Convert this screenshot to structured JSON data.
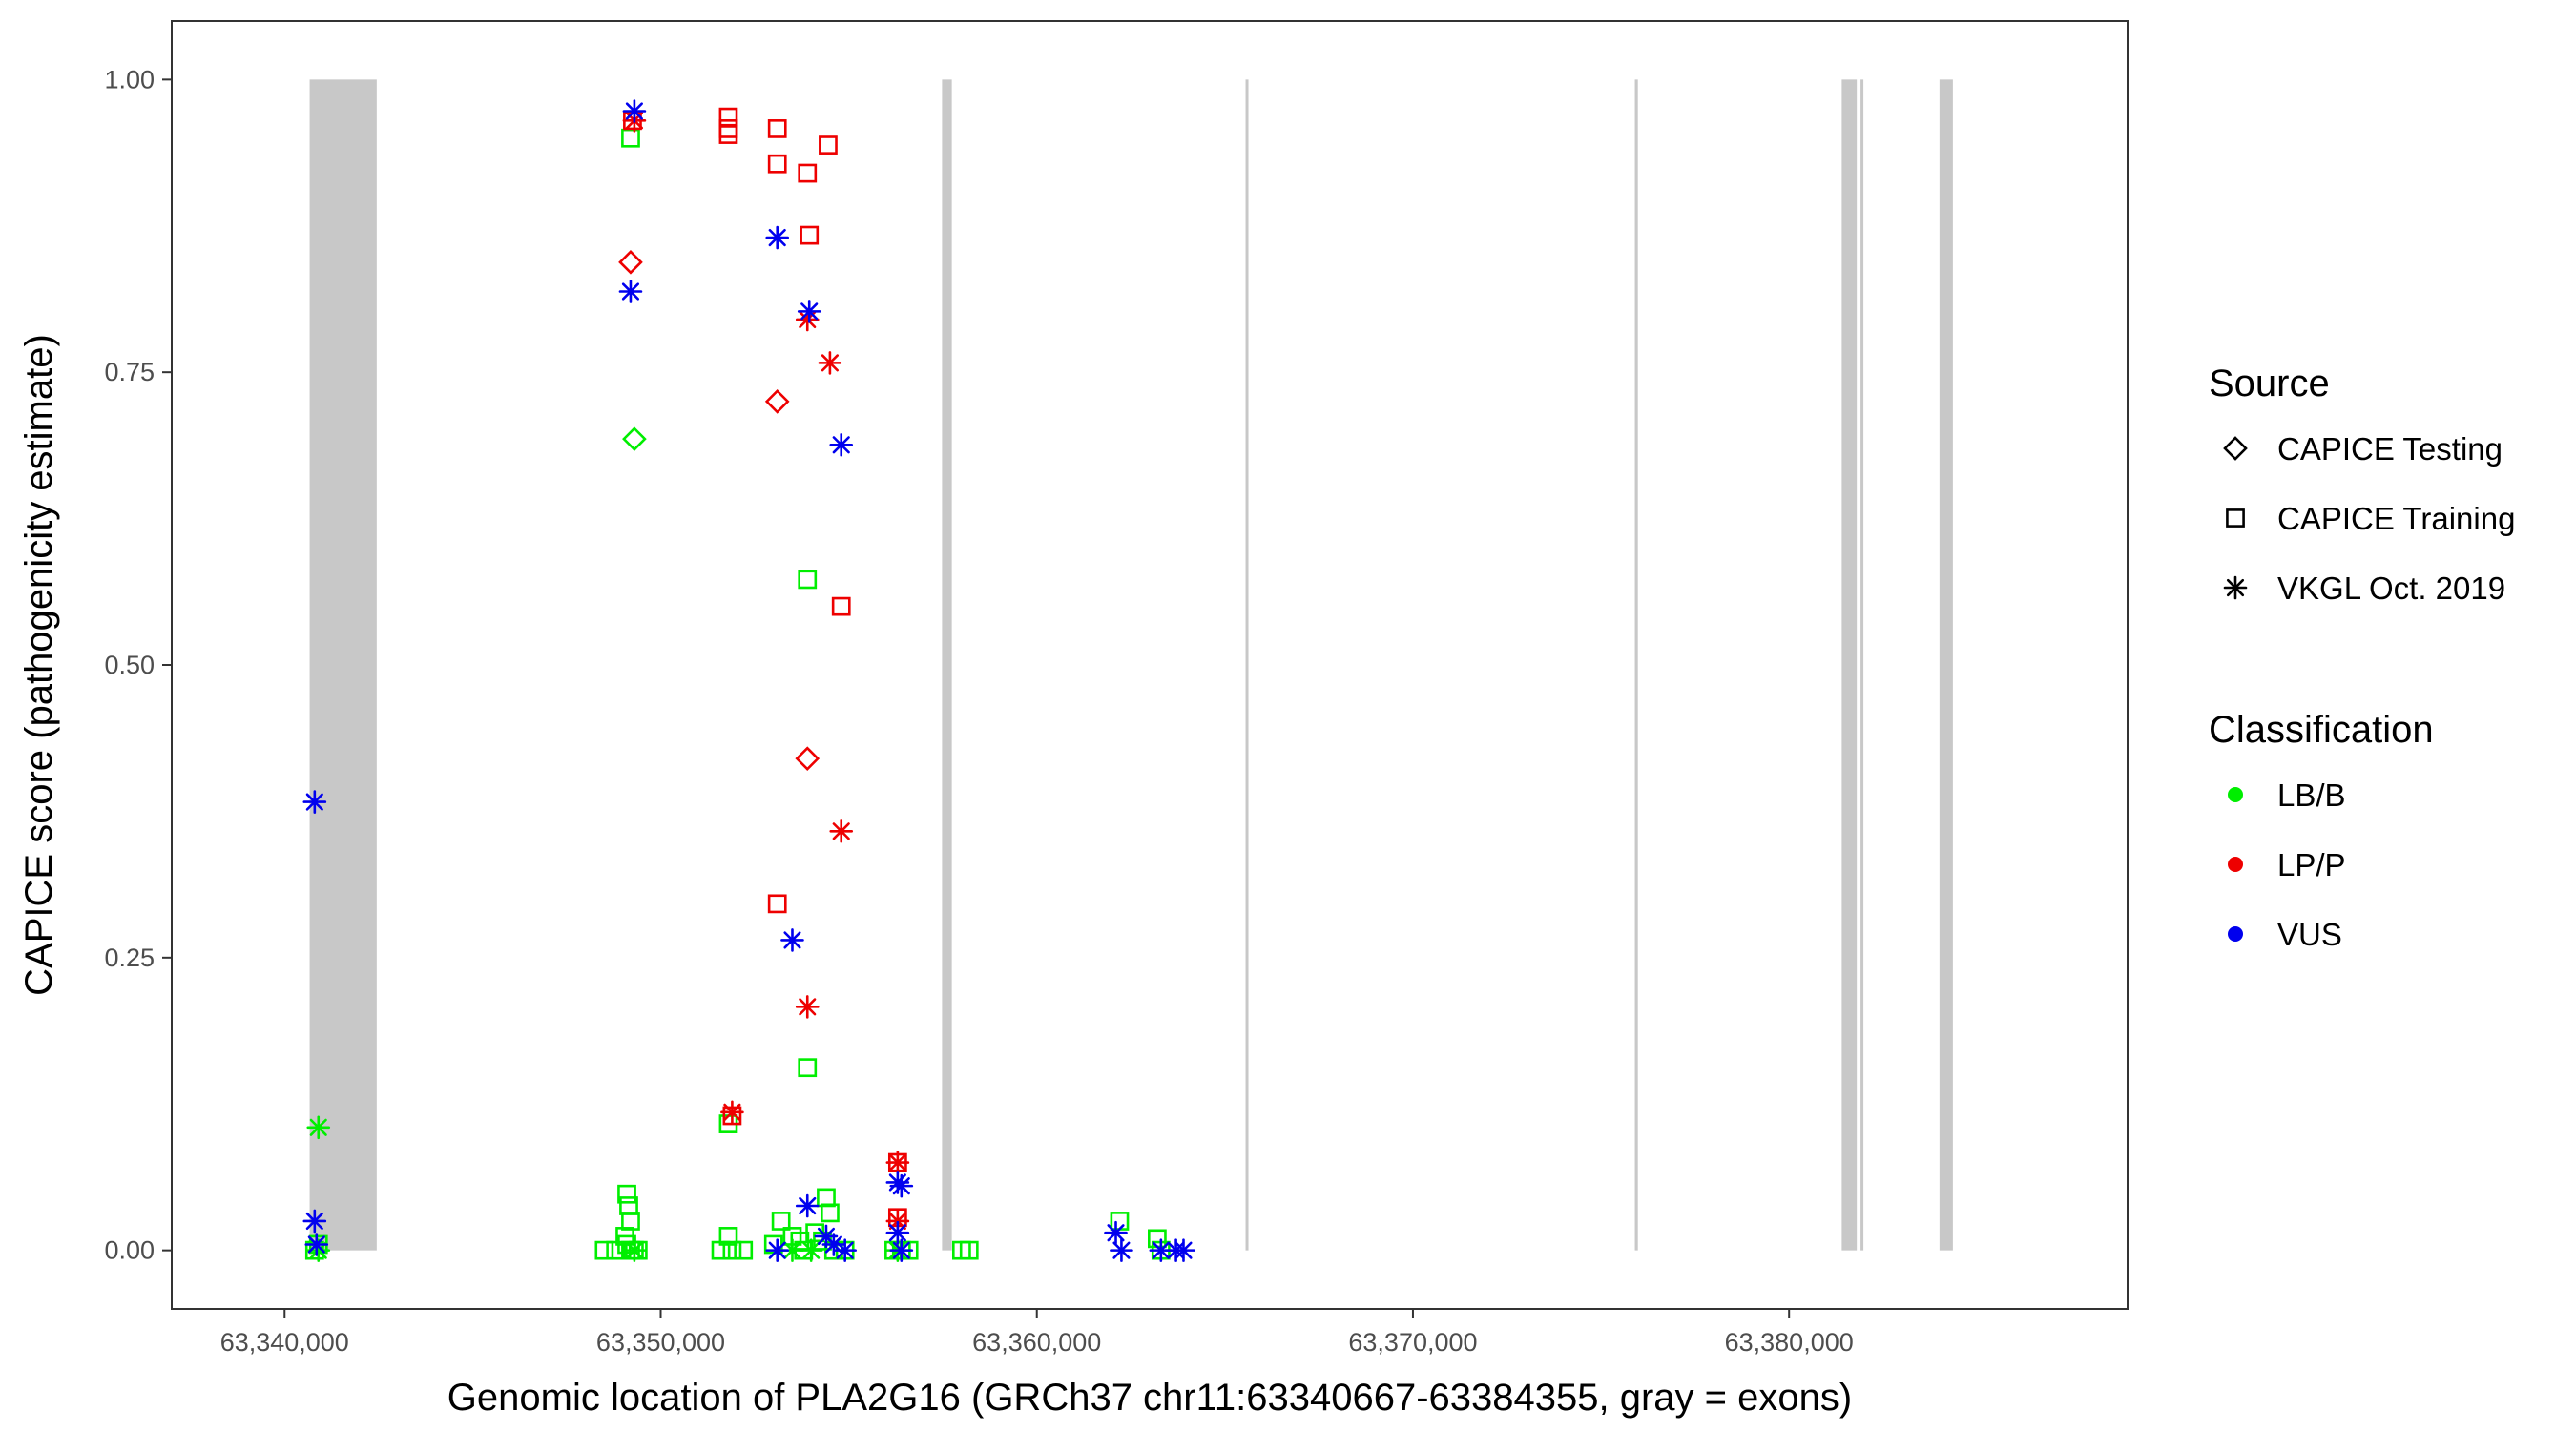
{
  "chart_data": {
    "type": "scatter",
    "xlabel": "Genomic location of PLA2G16 (GRCh37 chr11:63340667-63384355, gray = exons)",
    "ylabel": "CAPICE score (pathogenicity estimate)",
    "xlim": [
      63337000,
      63389000
    ],
    "ylim": [
      -0.05,
      1.05
    ],
    "x_ticks": [
      63340000,
      63350000,
      63360000,
      63370000,
      63380000
    ],
    "x_tick_labels": [
      "63,340,000",
      "63,350,000",
      "63,360,000",
      "63,370,000",
      "63,380,000"
    ],
    "y_ticks": [
      0,
      0.25,
      0.5,
      0.75,
      1.0
    ],
    "y_tick_labels": [
      "0.00",
      "0.25",
      "0.50",
      "0.75",
      "1.00"
    ],
    "grid": false,
    "exons": [
      [
        63340667,
        63342450
      ],
      [
        63357480,
        63357740
      ],
      [
        63365550,
        63365620
      ],
      [
        63375900,
        63375980
      ],
      [
        63381400,
        63381800
      ],
      [
        63381900,
        63381950
      ],
      [
        63384000,
        63384355
      ]
    ],
    "colors": {
      "LB/B": "#00ee00",
      "LP/P": "#ee0000",
      "VUS": "#0000ee",
      "exon": "#c8c8c8"
    },
    "legend": {
      "placement": "right",
      "source_title": "Source",
      "source_items": [
        {
          "shape": "diamond",
          "label": "CAPICE Testing"
        },
        {
          "shape": "square",
          "label": "CAPICE Training"
        },
        {
          "shape": "asterisk",
          "label": "VKGL Oct. 2019"
        }
      ],
      "class_title": "Classification",
      "class_items": [
        {
          "key": "LB/B",
          "label": "LB/B"
        },
        {
          "key": "LP/P",
          "label": "LP/P"
        },
        {
          "key": "VUS",
          "label": "VUS"
        }
      ]
    },
    "series": [
      {
        "source": "diamond",
        "class": "LB/B",
        "points": [
          [
            63349300,
            0.693
          ]
        ]
      },
      {
        "source": "diamond",
        "class": "LP/P",
        "points": [
          [
            63349200,
            0.844
          ],
          [
            63353100,
            0.725
          ],
          [
            63353900,
            0.42
          ]
        ]
      },
      {
        "source": "square",
        "class": "LB/B",
        "points": [
          [
            63340800,
            0.0
          ],
          [
            63340900,
            0.005
          ],
          [
            63349200,
            0.95
          ],
          [
            63349100,
            0.048
          ],
          [
            63349150,
            0.038
          ],
          [
            63349200,
            0.025
          ],
          [
            63349050,
            0.012
          ],
          [
            63349100,
            0.005
          ],
          [
            63349200,
            0.0
          ],
          [
            63348500,
            0.0
          ],
          [
            63348800,
            0.0
          ],
          [
            63349300,
            0.0
          ],
          [
            63349400,
            0.0
          ],
          [
            63351800,
            0.108
          ],
          [
            63351800,
            0.012
          ],
          [
            63351600,
            0.0
          ],
          [
            63351900,
            0.0
          ],
          [
            63352200,
            0.0
          ],
          [
            63353200,
            0.025
          ],
          [
            63353000,
            0.005
          ],
          [
            63353500,
            0.012
          ],
          [
            63353700,
            0.008
          ],
          [
            63353900,
            0.573
          ],
          [
            63353900,
            0.156
          ],
          [
            63353800,
            0.0
          ],
          [
            63354100,
            0.015
          ],
          [
            63354300,
            0.008
          ],
          [
            63354400,
            0.045
          ],
          [
            63354500,
            0.032
          ],
          [
            63354600,
            0.0
          ],
          [
            63354900,
            0.0
          ],
          [
            63356200,
            0.0
          ],
          [
            63356400,
            0.0
          ],
          [
            63356600,
            0.0
          ],
          [
            63358000,
            0.0
          ],
          [
            63358200,
            0.0
          ],
          [
            63362200,
            0.025
          ],
          [
            63363200,
            0.01
          ],
          [
            63363300,
            0.0
          ]
        ]
      },
      {
        "source": "square",
        "class": "LP/P",
        "points": [
          [
            63349250,
            0.965
          ],
          [
            63351800,
            0.968
          ],
          [
            63351800,
            0.958
          ],
          [
            63351800,
            0.953
          ],
          [
            63353100,
            0.958
          ],
          [
            63353100,
            0.928
          ],
          [
            63353900,
            0.92
          ],
          [
            63354450,
            0.944
          ],
          [
            63353950,
            0.867
          ],
          [
            63354800,
            0.55
          ],
          [
            63353100,
            0.296
          ],
          [
            63351900,
            0.115
          ],
          [
            63356300,
            0.028
          ],
          [
            63356300,
            0.075
          ]
        ]
      },
      {
        "source": "asterisk",
        "class": "LB/B",
        "points": [
          [
            63340900,
            0.105
          ],
          [
            63340900,
            0.0
          ],
          [
            63349300,
            0.0
          ],
          [
            63353500,
            0.0
          ],
          [
            63354000,
            0.0
          ],
          [
            63356300,
            0.0
          ]
        ]
      },
      {
        "source": "asterisk",
        "class": "LP/P",
        "points": [
          [
            63349300,
            0.965
          ],
          [
            63353900,
            0.795
          ],
          [
            63354500,
            0.758
          ],
          [
            63354800,
            0.358
          ],
          [
            63353900,
            0.208
          ],
          [
            63351900,
            0.118
          ],
          [
            63356300,
            0.075
          ],
          [
            63356300,
            0.025
          ]
        ]
      },
      {
        "source": "asterisk",
        "class": "VUS",
        "points": [
          [
            63340800,
            0.383
          ],
          [
            63340800,
            0.025
          ],
          [
            63340850,
            0.005
          ],
          [
            63349300,
            0.973
          ],
          [
            63349200,
            0.819
          ],
          [
            63353100,
            0.865
          ],
          [
            63353950,
            0.802
          ],
          [
            63354800,
            0.688
          ],
          [
            63353500,
            0.265
          ],
          [
            63353900,
            0.038
          ],
          [
            63354400,
            0.012
          ],
          [
            63354600,
            0.005
          ],
          [
            63354900,
            0.0
          ],
          [
            63353100,
            0.0
          ],
          [
            63356300,
            0.058
          ],
          [
            63356400,
            0.055
          ],
          [
            63356300,
            0.015
          ],
          [
            63356400,
            0.0
          ],
          [
            63362100,
            0.015
          ],
          [
            63362250,
            0.0
          ],
          [
            63363300,
            0.0
          ],
          [
            63363700,
            0.0
          ],
          [
            63363900,
            0.0
          ]
        ]
      }
    ]
  }
}
